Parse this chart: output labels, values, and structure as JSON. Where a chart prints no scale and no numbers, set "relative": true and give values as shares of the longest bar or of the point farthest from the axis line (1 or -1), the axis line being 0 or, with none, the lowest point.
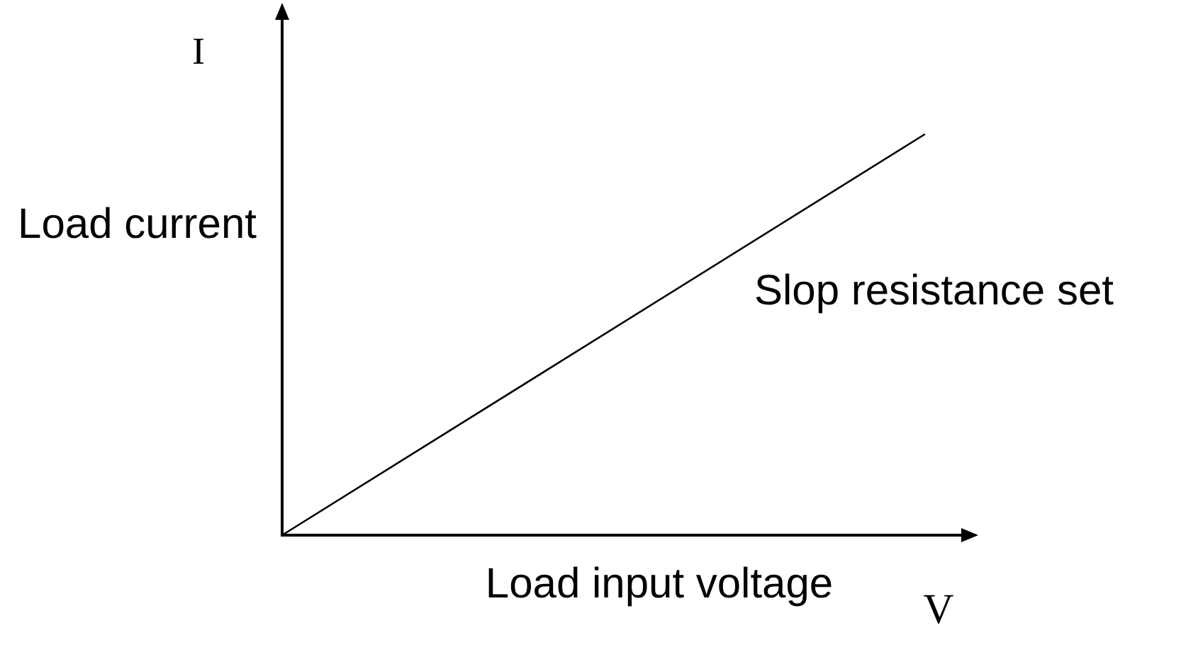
{
  "chart_data": {
    "type": "line",
    "relative": true,
    "categories": [
      null,
      null
    ],
    "values": [
      0,
      1
    ],
    "color": "#000000",
    "marker": "none",
    "line_style": "solid",
    "xlabel": "Load input voltage",
    "ylabel": "Load current",
    "annotations": [
      "I",
      "V",
      "Slop resistance set"
    ]
  }
}
